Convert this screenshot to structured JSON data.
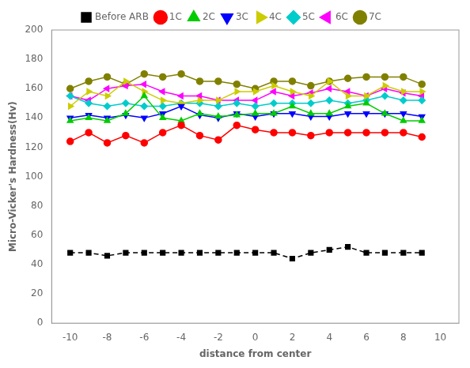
{
  "chart_data": {
    "type": "line",
    "xlabel": "distance from center",
    "ylabel": "Micro-Vicker's Hardness(Hv)",
    "x": [
      -10,
      -9,
      -8,
      -7,
      -6,
      -5,
      -4,
      -3,
      -2,
      -1,
      0,
      1,
      2,
      3,
      4,
      5,
      6,
      7,
      8,
      9
    ],
    "series": [
      {
        "name": "Before ARB",
        "color": "#000000",
        "marker": "square",
        "line_style": "dashed",
        "values": [
          48,
          48,
          46,
          48,
          48,
          48,
          48,
          48,
          48,
          48,
          48,
          48,
          44,
          48,
          50,
          52,
          48,
          48,
          48,
          48
        ]
      },
      {
        "name": "1C",
        "color": "#ff0000",
        "marker": "circle",
        "line_style": "solid",
        "values": [
          124,
          130,
          123,
          128,
          123,
          130,
          135,
          128,
          125,
          135,
          132,
          130,
          130,
          128,
          130,
          130,
          130,
          130,
          130,
          127
        ]
      },
      {
        "name": "2C",
        "color": "#00cc00",
        "marker": "triangle_up",
        "line_style": "solid",
        "values": [
          138,
          140,
          138,
          143,
          155,
          140,
          138,
          143,
          141,
          142,
          143,
          143,
          148,
          143,
          143,
          148,
          150,
          143,
          138,
          138
        ]
      },
      {
        "name": "3C",
        "color": "#0000ff",
        "marker": "triangle_down",
        "line_style": "solid",
        "values": [
          140,
          142,
          140,
          142,
          140,
          143,
          148,
          142,
          140,
          143,
          141,
          143,
          143,
          141,
          141,
          143,
          143,
          143,
          143,
          141
        ]
      },
      {
        "name": "4C",
        "color": "#cccc00",
        "marker": "triangle_right",
        "line_style": "solid",
        "values": [
          148,
          158,
          155,
          165,
          158,
          152,
          150,
          152,
          152,
          158,
          158,
          162,
          158,
          155,
          165,
          155,
          155,
          162,
          158,
          158
        ]
      },
      {
        "name": "5C",
        "color": "#00cccc",
        "marker": "diamond",
        "line_style": "solid",
        "values": [
          155,
          150,
          148,
          150,
          148,
          148,
          150,
          150,
          148,
          150,
          148,
          150,
          150,
          150,
          152,
          150,
          152,
          155,
          152,
          152
        ]
      },
      {
        "name": "6C",
        "color": "#ff00ff",
        "marker": "triangle_left",
        "line_style": "solid",
        "values": [
          155,
          152,
          160,
          162,
          163,
          158,
          155,
          155,
          152,
          152,
          152,
          158,
          155,
          157,
          160,
          158,
          155,
          160,
          157,
          155
        ]
      },
      {
        "name": "7C",
        "color": "#808000",
        "marker": "circle",
        "line_style": "solid",
        "values": [
          160,
          165,
          168,
          163,
          170,
          168,
          170,
          165,
          165,
          163,
          160,
          165,
          165,
          162,
          165,
          167,
          168,
          168,
          168,
          163
        ]
      }
    ],
    "xlim": [
      -11,
      11
    ],
    "xticks": [
      -10,
      -8,
      -6,
      -4,
      -2,
      0,
      2,
      4,
      6,
      8,
      10
    ],
    "ylim": [
      0,
      200
    ],
    "yticks": [
      0,
      20,
      40,
      60,
      80,
      100,
      120,
      140,
      160,
      180,
      200
    ],
    "grid": false,
    "legend": "top"
  }
}
